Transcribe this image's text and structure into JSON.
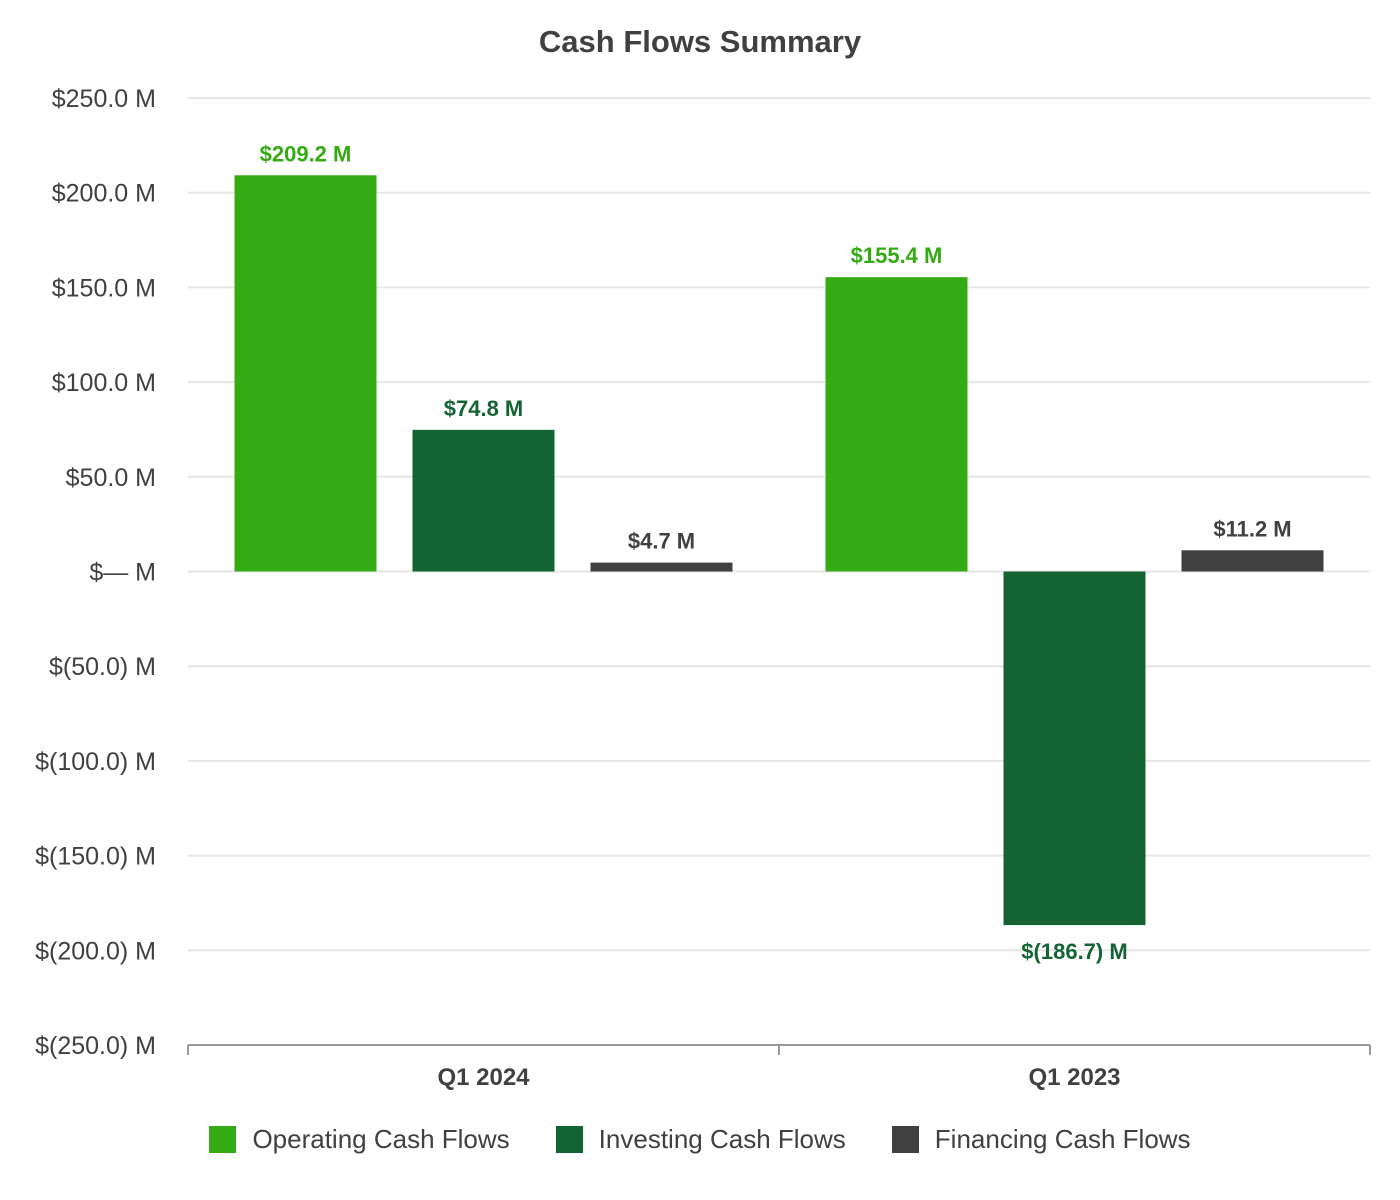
{
  "chart_data": {
    "type": "bar",
    "title": "Cash Flows Summary",
    "categories": [
      "Q1 2024",
      "Q1 2023"
    ],
    "series": [
      {
        "name": "Operating Cash Flows",
        "color": "#34ab13",
        "values": [
          209.2,
          155.4
        ],
        "labels": [
          "$209.2 M",
          "$155.4 M"
        ]
      },
      {
        "name": "Investing Cash Flows",
        "color": "#136432",
        "values": [
          74.8,
          -186.7
        ],
        "labels": [
          "$74.8 M",
          "$(186.7) M"
        ]
      },
      {
        "name": "Financing Cash Flows",
        "color": "#404040",
        "values": [
          4.7,
          11.2
        ],
        "labels": [
          "$4.7 M",
          "$11.2 M"
        ]
      }
    ],
    "yticks": [
      250,
      200,
      150,
      100,
      50,
      0,
      -50,
      -100,
      -150,
      -200,
      -250
    ],
    "ytick_labels": [
      "$250.0 M",
      "$200.0 M",
      "$150.0 M",
      "$100.0 M",
      "$50.0 M",
      "$— M",
      "$(50.0) M",
      "$(100.0) M",
      "$(150.0) M",
      "$(200.0) M",
      "$(250.0) M"
    ],
    "ylim": [
      -250,
      250
    ],
    "xlabel": "",
    "ylabel": "",
    "grid": true,
    "legend": "bottom"
  }
}
